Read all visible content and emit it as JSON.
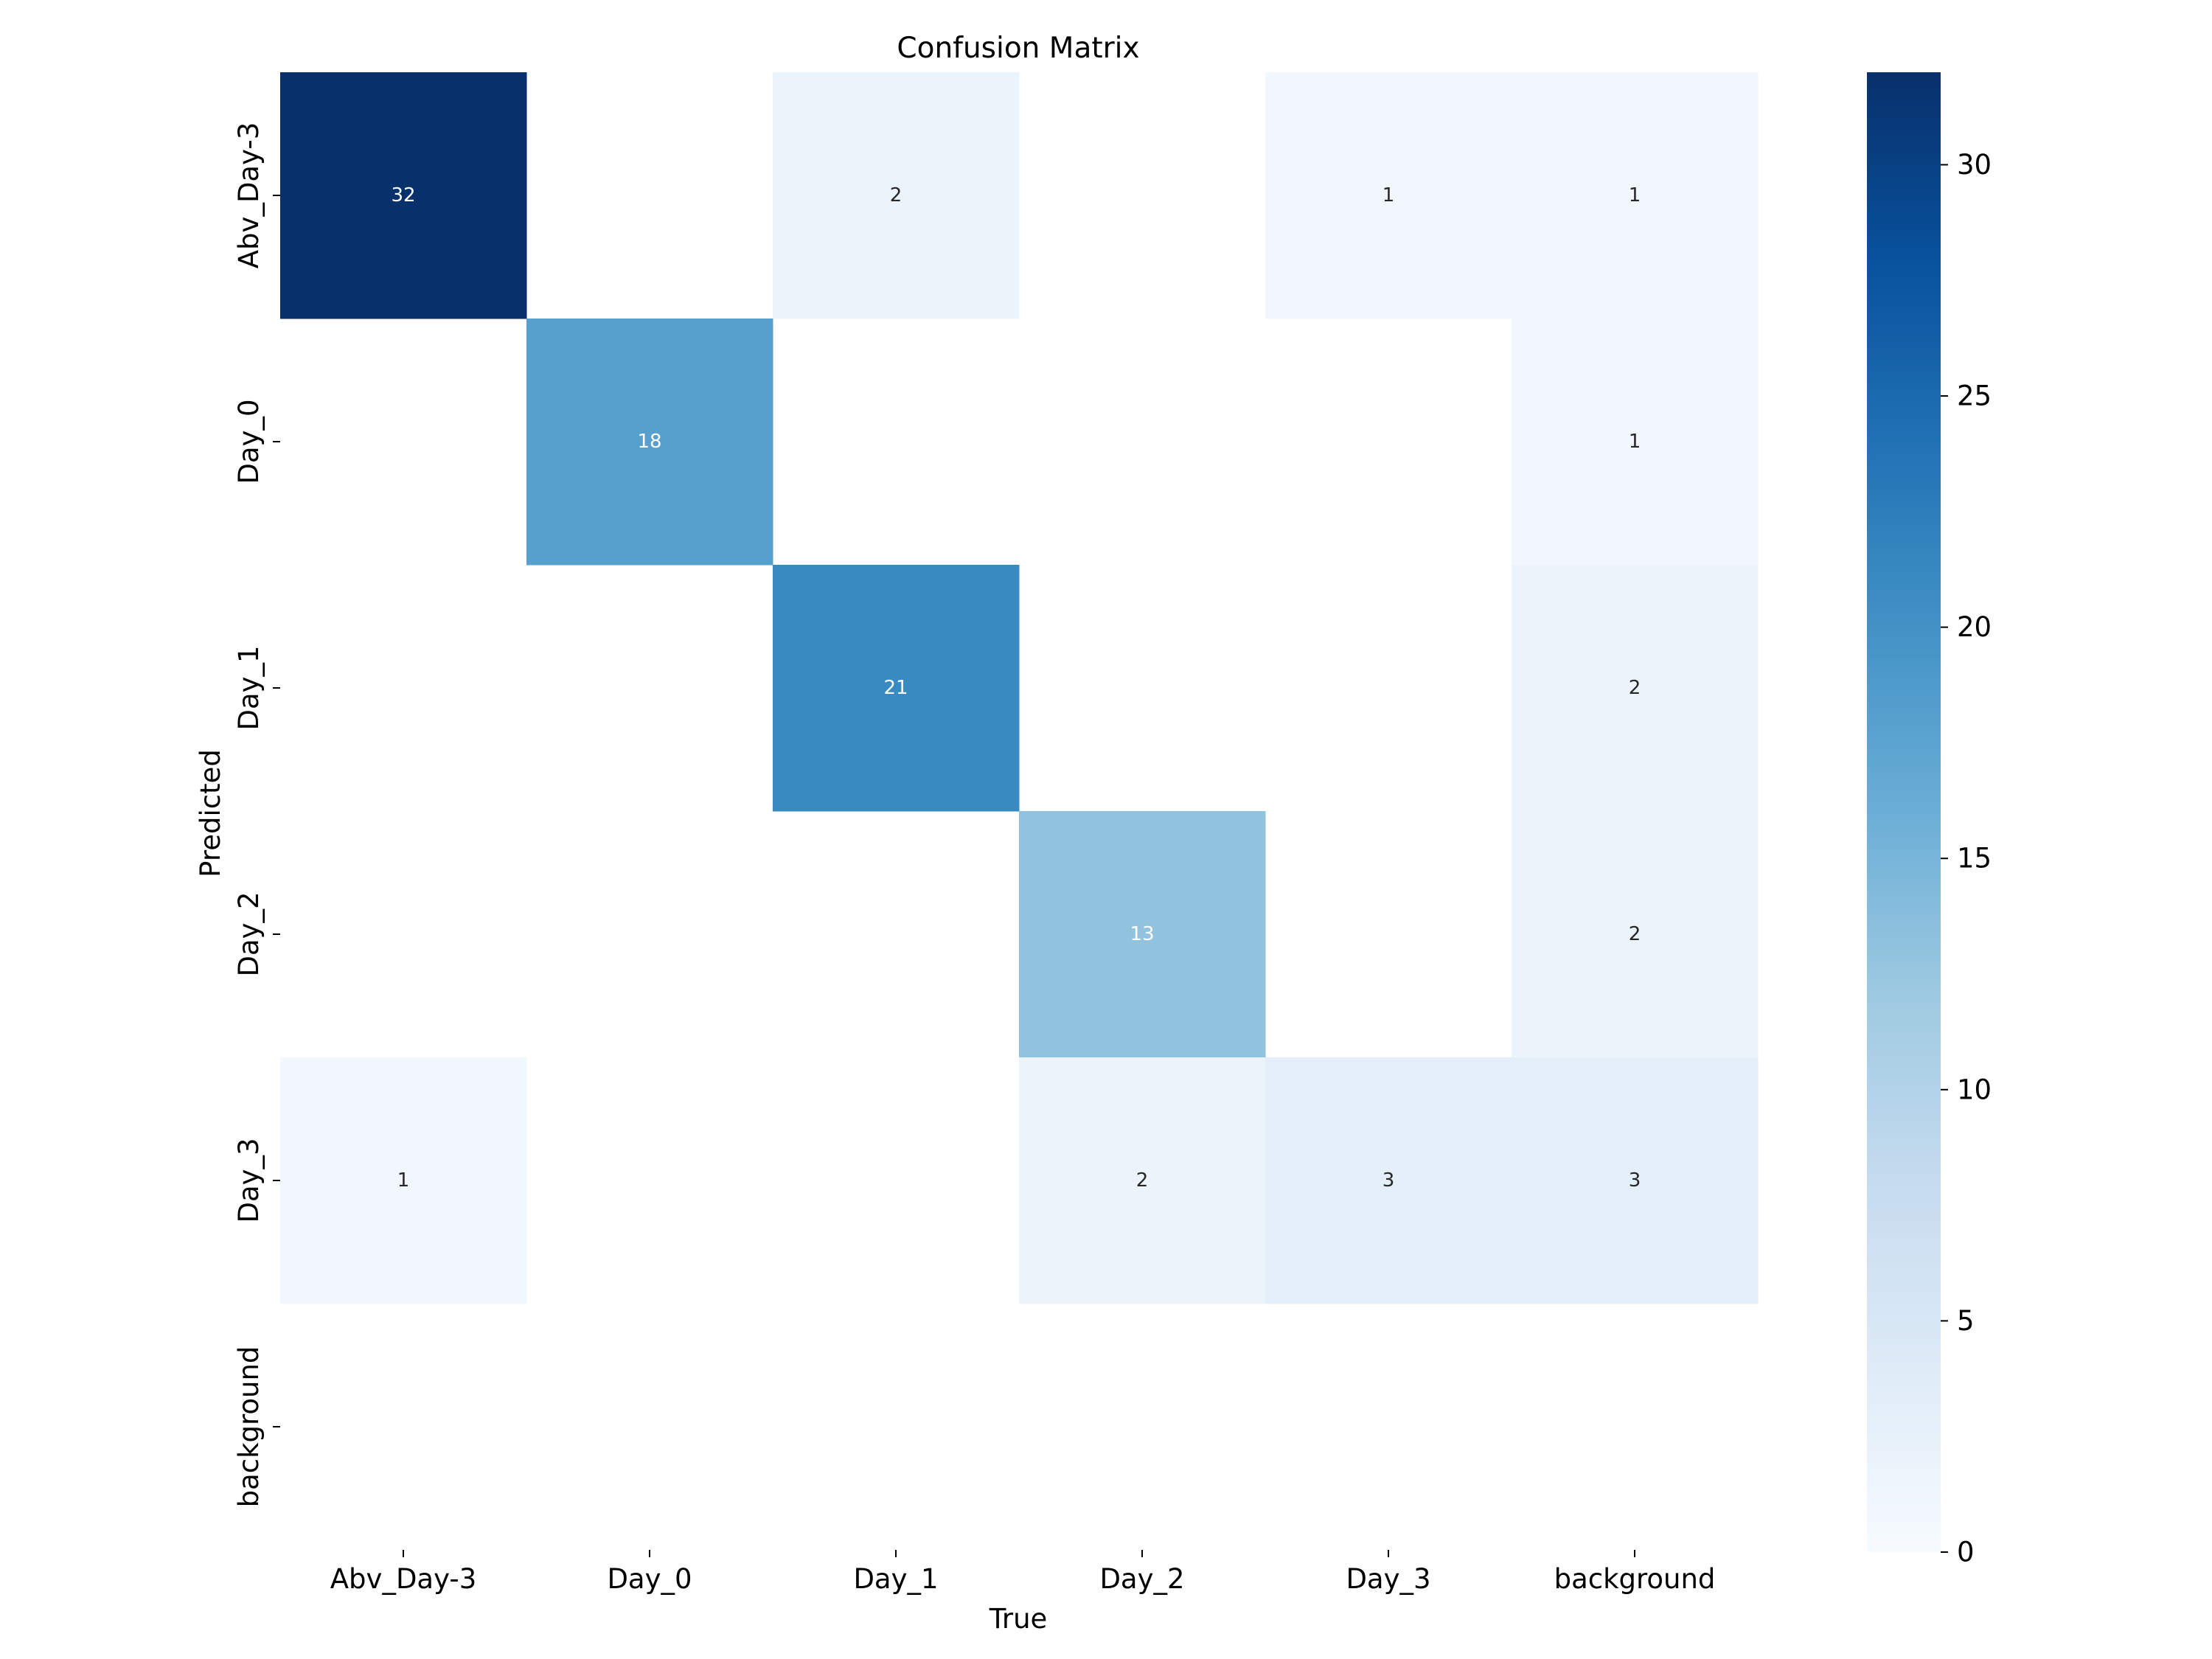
{
  "chart_data": {
    "type": "heatmap",
    "title": "Confusion Matrix",
    "xlabel": "True",
    "ylabel": "Predicted",
    "x_categories": [
      "Abv_Day-3",
      "Day_0",
      "Day_1",
      "Day_2",
      "Day_3",
      "background"
    ],
    "y_categories": [
      "Abv_Day-3",
      "Day_0",
      "Day_1",
      "Day_2",
      "Day_3",
      "background"
    ],
    "matrix": [
      [
        32,
        0,
        2,
        0,
        1,
        1
      ],
      [
        0,
        18,
        0,
        0,
        0,
        1
      ],
      [
        0,
        0,
        21,
        0,
        0,
        2
      ],
      [
        0,
        0,
        0,
        13,
        0,
        2
      ],
      [
        1,
        0,
        0,
        2,
        3,
        3
      ],
      [
        0,
        0,
        0,
        0,
        0,
        0
      ]
    ],
    "zero_cells_blank": true,
    "colormap": "Blues",
    "colors": [
      "#f7fbff",
      "#deebf7",
      "#c6dbef",
      "#9ecae1",
      "#6baed6",
      "#4292c6",
      "#2171b5",
      "#08519c",
      "#08306b"
    ],
    "vmin": 0,
    "vmax": 32,
    "colorbar_ticks": [
      0,
      5,
      10,
      15,
      20,
      25,
      30
    ]
  }
}
